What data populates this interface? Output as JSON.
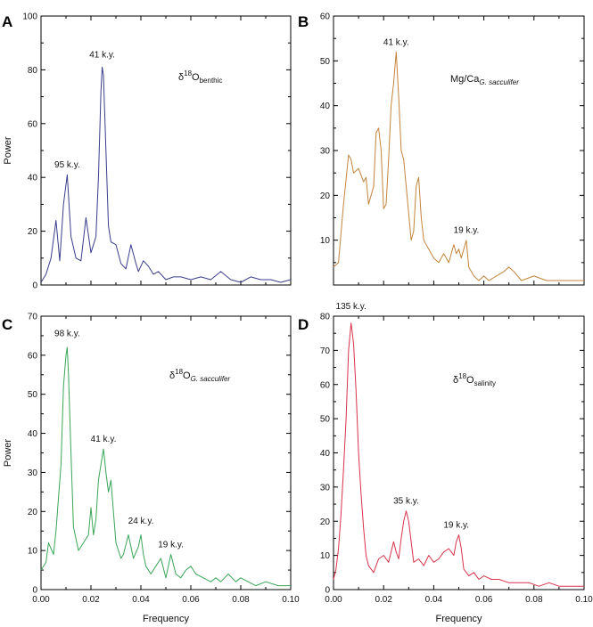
{
  "chart_data": [
    {
      "panel": "A",
      "type": "line",
      "xlabel": "",
      "ylabel": "Power",
      "xlim": [
        0,
        0.1
      ],
      "ylim": [
        0,
        100
      ],
      "xticks": [],
      "yticks": [
        "0",
        "20",
        "40",
        "60",
        "80",
        "100"
      ],
      "label_pre": "δ",
      "label_sup": "18",
      "label_main": "O",
      "label_sub": "benthic",
      "color": "#3a3d8c",
      "peaks": [
        {
          "text": "41 k.y.",
          "x": 0.0245,
          "y": 82
        },
        {
          "text": "95 k.y.",
          "x": 0.0105,
          "y": 41
        }
      ],
      "series": [
        {
          "x": [
            0.0,
            0.002,
            0.004,
            0.006,
            0.0075,
            0.009,
            0.0105,
            0.012,
            0.014,
            0.016,
            0.018,
            0.02,
            0.022,
            0.023,
            0.024,
            0.0245,
            0.025,
            0.026,
            0.027,
            0.028,
            0.03,
            0.032,
            0.034,
            0.036,
            0.038,
            0.039,
            0.041,
            0.043,
            0.045,
            0.047,
            0.05,
            0.053,
            0.056,
            0.06,
            0.064,
            0.068,
            0.072,
            0.076,
            0.08,
            0.084,
            0.088,
            0.092,
            0.096,
            0.1
          ],
          "y": [
            1,
            4,
            10,
            24,
            9,
            30,
            41,
            18,
            10,
            9,
            25,
            12,
            18,
            40,
            72,
            81,
            78,
            50,
            22,
            16,
            15,
            8,
            6,
            15,
            8,
            5,
            9,
            7,
            4,
            5,
            2,
            3,
            3,
            2,
            3,
            2,
            5,
            2,
            1,
            3,
            2,
            2,
            1,
            2
          ]
        }
      ]
    },
    {
      "panel": "B",
      "type": "line",
      "xlabel": "",
      "ylabel": "",
      "xlim": [
        0,
        0.1
      ],
      "ylim": [
        0,
        60
      ],
      "xticks": [],
      "yticks": [
        "10",
        "20",
        "30",
        "40",
        "50",
        "60"
      ],
      "label_pre": "",
      "label_sup": "",
      "label_main": "Mg/Ca",
      "label_sub": "G. sacculifer",
      "color": "#c4843b",
      "peaks": [
        {
          "text": "41 k.y.",
          "x": 0.025,
          "y": 52
        },
        {
          "text": "19 k.y.",
          "x": 0.053,
          "y": 10
        }
      ],
      "series": [
        {
          "x": [
            0.0,
            0.002,
            0.004,
            0.006,
            0.007,
            0.008,
            0.01,
            0.012,
            0.013,
            0.014,
            0.016,
            0.017,
            0.018,
            0.019,
            0.02,
            0.021,
            0.022,
            0.023,
            0.024,
            0.025,
            0.026,
            0.027,
            0.028,
            0.029,
            0.03,
            0.031,
            0.032,
            0.033,
            0.034,
            0.035,
            0.036,
            0.038,
            0.04,
            0.042,
            0.044,
            0.046,
            0.048,
            0.049,
            0.05,
            0.051,
            0.052,
            0.053,
            0.054,
            0.056,
            0.058,
            0.06,
            0.062,
            0.065,
            0.068,
            0.07,
            0.072,
            0.075,
            0.08,
            0.085,
            0.09,
            0.095,
            0.1
          ],
          "y": [
            4,
            5,
            18,
            29,
            28,
            25,
            26,
            23,
            24,
            18,
            22,
            34,
            35,
            30,
            17,
            18,
            28,
            40,
            45,
            52,
            42,
            30,
            28,
            22,
            16,
            10,
            12,
            22,
            24,
            15,
            10,
            8,
            6,
            5,
            7,
            5,
            9,
            7,
            8,
            6,
            8,
            10,
            4,
            2,
            1,
            2,
            1,
            2,
            3,
            4,
            3,
            1,
            2,
            1,
            1,
            1,
            1
          ]
        }
      ]
    },
    {
      "panel": "C",
      "type": "line",
      "xlabel": "Frequency",
      "ylabel": "Power",
      "xlim": [
        0,
        0.1
      ],
      "ylim": [
        0,
        70
      ],
      "xticks": [
        "0.00",
        "0.02",
        "0.04",
        "0.06",
        "0.08",
        "0.10"
      ],
      "yticks": [
        "0",
        "10",
        "20",
        "30",
        "40",
        "50",
        "60",
        "70"
      ],
      "label_pre": "δ",
      "label_sup": "18",
      "label_main": "O",
      "label_sub": "G. sacculifer",
      "color": "#3aa558",
      "peaks": [
        {
          "text": "98 k.y.",
          "x": 0.0105,
          "y": 63
        },
        {
          "text": "41 k.y.",
          "x": 0.025,
          "y": 36
        },
        {
          "text": "24 k.y.",
          "x": 0.04,
          "y": 15
        },
        {
          "text": "19 k.y.",
          "x": 0.052,
          "y": 9
        }
      ],
      "series": [
        {
          "x": [
            0.0,
            0.002,
            0.003,
            0.005,
            0.006,
            0.008,
            0.009,
            0.01,
            0.0105,
            0.011,
            0.012,
            0.013,
            0.015,
            0.017,
            0.019,
            0.02,
            0.021,
            0.022,
            0.023,
            0.024,
            0.025,
            0.026,
            0.027,
            0.028,
            0.029,
            0.03,
            0.031,
            0.032,
            0.033,
            0.035,
            0.037,
            0.039,
            0.04,
            0.041,
            0.042,
            0.044,
            0.046,
            0.048,
            0.05,
            0.052,
            0.054,
            0.056,
            0.058,
            0.06,
            0.062,
            0.065,
            0.068,
            0.07,
            0.072,
            0.075,
            0.078,
            0.08,
            0.083,
            0.086,
            0.09,
            0.095,
            0.1
          ],
          "y": [
            5,
            7,
            12,
            9,
            15,
            32,
            52,
            60,
            62,
            55,
            35,
            16,
            10,
            12,
            14,
            21,
            14,
            18,
            28,
            32,
            36,
            30,
            25,
            28,
            20,
            12,
            10,
            8,
            9,
            14,
            8,
            11,
            14,
            9,
            6,
            4,
            6,
            8,
            3,
            9,
            4,
            3,
            5,
            6,
            4,
            3,
            2,
            3,
            2,
            4,
            2,
            3,
            2,
            1,
            2,
            1,
            1
          ]
        }
      ]
    },
    {
      "panel": "D",
      "type": "line",
      "xlabel": "Frequency",
      "ylabel": "",
      "xlim": [
        0,
        0.1
      ],
      "ylim": [
        0,
        80
      ],
      "xticks": [
        "0.00",
        "0.02",
        "0.04",
        "0.06",
        "0.08",
        "0.10"
      ],
      "yticks": [
        "0",
        "10",
        "20",
        "30",
        "40",
        "50",
        "60",
        "70",
        "80"
      ],
      "label_pre": "δ",
      "label_sup": "18",
      "label_main": "O",
      "label_sub": "salinity",
      "color": "#d8334b",
      "peaks": [
        {
          "text": "135 k.y.",
          "x": 0.007,
          "y": 80
        },
        {
          "text": "35 k.y.",
          "x": 0.029,
          "y": 23
        },
        {
          "text": "19 k.y.",
          "x": 0.049,
          "y": 16
        }
      ],
      "series": [
        {
          "x": [
            0.0,
            0.001,
            0.002,
            0.003,
            0.004,
            0.005,
            0.006,
            0.007,
            0.008,
            0.009,
            0.01,
            0.011,
            0.012,
            0.013,
            0.014,
            0.016,
            0.018,
            0.02,
            0.022,
            0.024,
            0.025,
            0.026,
            0.027,
            0.028,
            0.029,
            0.03,
            0.031,
            0.032,
            0.034,
            0.036,
            0.038,
            0.04,
            0.042,
            0.044,
            0.046,
            0.048,
            0.049,
            0.05,
            0.051,
            0.052,
            0.054,
            0.056,
            0.058,
            0.06,
            0.063,
            0.066,
            0.07,
            0.074,
            0.078,
            0.082,
            0.086,
            0.09,
            0.095,
            0.1
          ],
          "y": [
            3,
            6,
            12,
            22,
            35,
            50,
            70,
            78,
            72,
            58,
            40,
            28,
            18,
            10,
            7,
            5,
            9,
            10,
            8,
            14,
            11,
            9,
            15,
            20,
            23,
            20,
            14,
            8,
            9,
            7,
            10,
            8,
            9,
            11,
            12,
            10,
            14,
            16,
            12,
            6,
            4,
            5,
            3,
            4,
            3,
            3,
            2,
            2,
            2,
            1,
            2,
            1,
            1,
            1
          ]
        }
      ]
    }
  ]
}
